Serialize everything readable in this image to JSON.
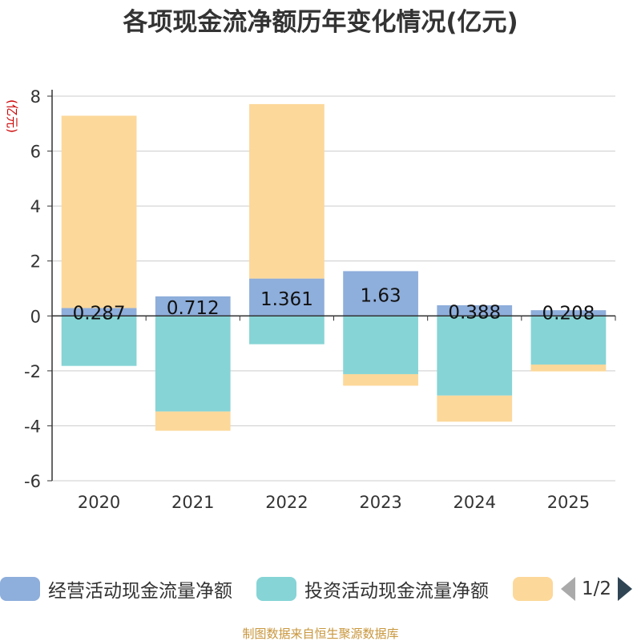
{
  "chart_data": {
    "type": "bar",
    "stacked": true,
    "title": "各项现金流净额历年变化情况(亿元)",
    "ylabel": "(亿元)",
    "xlabel": "",
    "ylim": [
      -6,
      8
    ],
    "yticks": [
      8,
      6,
      4,
      2,
      0,
      -2,
      -4,
      -6
    ],
    "categories": [
      "2020",
      "2021",
      "2022",
      "2023",
      "2024",
      "2025"
    ],
    "series": [
      {
        "name": "经营活动现金流量净额",
        "color": "#8eaedb",
        "values": [
          0.287,
          0.712,
          1.361,
          1.63,
          0.388,
          0.208
        ],
        "labels": [
          "0.287",
          "0.712",
          "1.361",
          "1.63",
          "0.388",
          "0.208"
        ]
      },
      {
        "name": "投资活动现金流量净额",
        "color": "#86d4d6",
        "values": [
          -1.82,
          -3.48,
          -1.03,
          -2.12,
          -2.9,
          -1.77
        ]
      },
      {
        "name": "",
        "color": "#fcd89a",
        "values": [
          7.0,
          -0.7,
          6.35,
          -0.42,
          -0.95,
          -0.25
        ]
      }
    ],
    "legend": {
      "position": "bottom",
      "page": "1/2"
    }
  },
  "source": "制图数据来自恒生聚源数据库"
}
